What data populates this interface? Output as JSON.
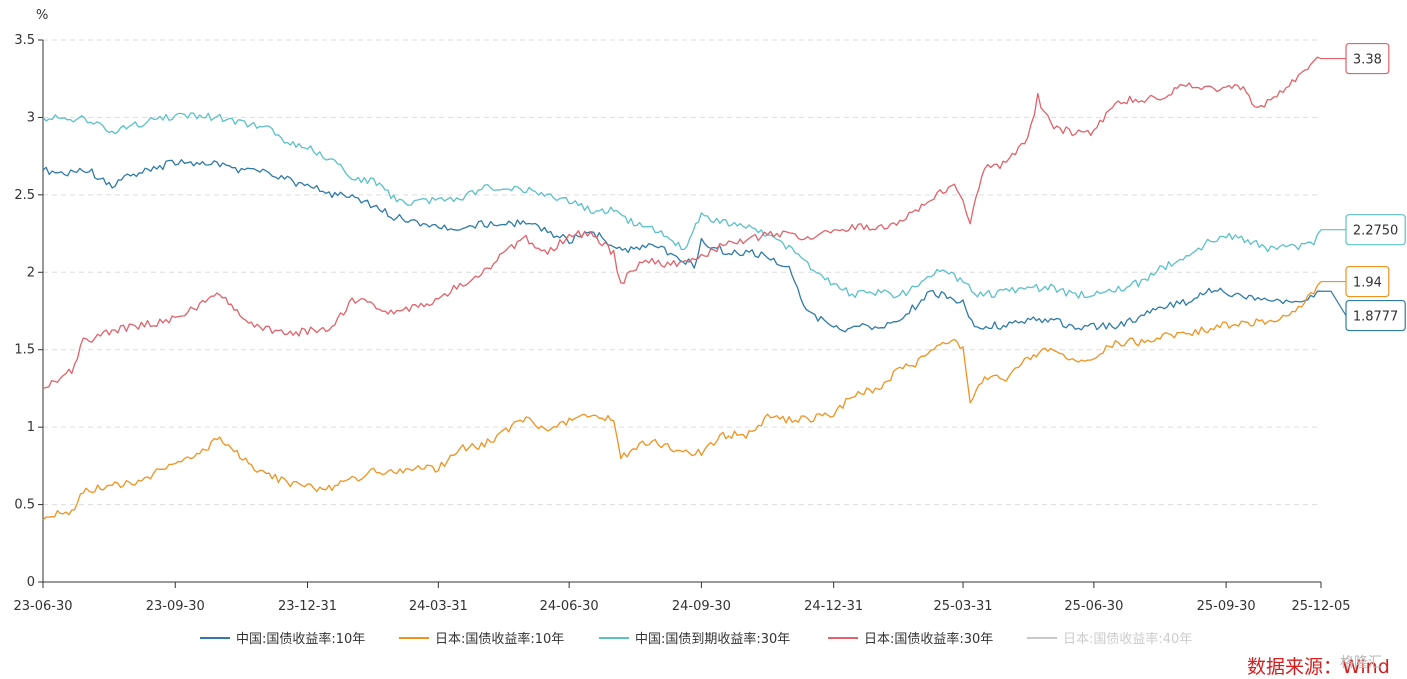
{
  "chart_data": {
    "type": "line",
    "ylabel": "%",
    "ylim": [
      0,
      3.5
    ],
    "y_ticks": [
      "0",
      "0.5",
      "1",
      "1.5",
      "2",
      "2.5",
      "3",
      "3.5"
    ],
    "x_range": [
      "23-06-30",
      "25-12-05"
    ],
    "x_ticks": [
      "23-06-30",
      "23-09-30",
      "23-12-31",
      "24-03-31",
      "24-06-30",
      "24-09-30",
      "24-12-31",
      "25-03-31",
      "25-06-30",
      "25-09-30",
      "25-12-05"
    ],
    "grid": "horizontal dashed",
    "legend_position": "bottom",
    "series": [
      {
        "name": "中国:国债收益率:10年",
        "color": "#2f7aa8",
        "end_label": "1.8777",
        "points": [
          [
            "23-06-30",
            2.66
          ],
          [
            "23-07-15",
            2.64
          ],
          [
            "23-08-01",
            2.66
          ],
          [
            "23-08-15",
            2.56
          ],
          [
            "23-09-01",
            2.63
          ],
          [
            "23-09-15",
            2.67
          ],
          [
            "23-09-30",
            2.71
          ],
          [
            "23-10-15",
            2.7
          ],
          [
            "23-10-31",
            2.7
          ],
          [
            "23-11-15",
            2.66
          ],
          [
            "23-11-30",
            2.66
          ],
          [
            "23-12-15",
            2.6
          ],
          [
            "23-12-31",
            2.56
          ],
          [
            "24-01-15",
            2.51
          ],
          [
            "24-01-31",
            2.48
          ],
          [
            "24-02-15",
            2.43
          ],
          [
            "24-02-29",
            2.36
          ],
          [
            "24-03-10",
            2.33
          ],
          [
            "24-03-31",
            2.3
          ],
          [
            "24-04-15",
            2.27
          ],
          [
            "24-04-30",
            2.31
          ],
          [
            "24-05-15",
            2.32
          ],
          [
            "24-05-31",
            2.31
          ],
          [
            "24-06-15",
            2.27
          ],
          [
            "24-06-30",
            2.2
          ],
          [
            "24-07-15",
            2.27
          ],
          [
            "24-07-31",
            2.17
          ],
          [
            "24-08-10",
            2.13
          ],
          [
            "24-08-20",
            2.18
          ],
          [
            "24-08-31",
            2.16
          ],
          [
            "24-09-15",
            2.08
          ],
          [
            "24-09-25",
            2.05
          ],
          [
            "24-09-30",
            2.2
          ],
          [
            "24-10-15",
            2.14
          ],
          [
            "24-10-31",
            2.13
          ],
          [
            "24-11-15",
            2.1
          ],
          [
            "24-11-30",
            2.02
          ],
          [
            "24-12-10",
            1.8
          ],
          [
            "24-12-20",
            1.7
          ],
          [
            "24-12-31",
            1.65
          ],
          [
            "25-01-10",
            1.62
          ],
          [
            "25-01-20",
            1.65
          ],
          [
            "25-01-31",
            1.64
          ],
          [
            "25-02-15",
            1.7
          ],
          [
            "25-02-28",
            1.8
          ],
          [
            "25-03-10",
            1.88
          ],
          [
            "25-03-20",
            1.83
          ],
          [
            "25-03-31",
            1.8
          ],
          [
            "25-04-08",
            1.65
          ],
          [
            "25-04-20",
            1.66
          ],
          [
            "25-04-30",
            1.65
          ],
          [
            "25-05-15",
            1.69
          ],
          [
            "25-05-31",
            1.7
          ],
          [
            "25-06-15",
            1.65
          ],
          [
            "25-06-30",
            1.65
          ],
          [
            "25-07-15",
            1.65
          ],
          [
            "25-07-31",
            1.7
          ],
          [
            "25-08-10",
            1.75
          ],
          [
            "25-08-20",
            1.78
          ],
          [
            "25-08-31",
            1.8
          ],
          [
            "25-09-10",
            1.85
          ],
          [
            "25-09-20",
            1.88
          ],
          [
            "25-09-30",
            1.87
          ],
          [
            "25-10-10",
            1.85
          ],
          [
            "25-10-20",
            1.83
          ],
          [
            "25-10-31",
            1.82
          ],
          [
            "25-11-15",
            1.82
          ],
          [
            "25-11-30",
            1.84
          ],
          [
            "25-12-05",
            1.8777
          ]
        ]
      },
      {
        "name": "日本:国债收益率:10年",
        "color": "#f0921f",
        "end_label": "1.94",
        "points": [
          [
            "23-06-30",
            0.4
          ],
          [
            "23-07-10",
            0.44
          ],
          [
            "23-07-20",
            0.46
          ],
          [
            "23-07-28",
            0.58
          ],
          [
            "23-08-15",
            0.62
          ],
          [
            "23-08-31",
            0.64
          ],
          [
            "23-09-15",
            0.7
          ],
          [
            "23-09-30",
            0.76
          ],
          [
            "23-10-15",
            0.82
          ],
          [
            "23-10-31",
            0.93
          ],
          [
            "23-11-10",
            0.85
          ],
          [
            "23-11-20",
            0.76
          ],
          [
            "23-11-30",
            0.7
          ],
          [
            "23-12-15",
            0.65
          ],
          [
            "23-12-31",
            0.61
          ],
          [
            "24-01-15",
            0.6
          ],
          [
            "24-01-31",
            0.66
          ],
          [
            "24-02-15",
            0.72
          ],
          [
            "24-02-29",
            0.7
          ],
          [
            "24-03-15",
            0.75
          ],
          [
            "24-03-31",
            0.73
          ],
          [
            "24-04-15",
            0.86
          ],
          [
            "24-04-30",
            0.88
          ],
          [
            "24-05-15",
            0.96
          ],
          [
            "24-05-31",
            1.06
          ],
          [
            "24-06-15",
            0.96
          ],
          [
            "24-06-30",
            1.05
          ],
          [
            "24-07-15",
            1.07
          ],
          [
            "24-07-31",
            1.05
          ],
          [
            "24-08-05",
            0.8
          ],
          [
            "24-08-20",
            0.89
          ],
          [
            "24-08-31",
            0.9
          ],
          [
            "24-09-15",
            0.83
          ],
          [
            "24-09-30",
            0.84
          ],
          [
            "24-10-15",
            0.95
          ],
          [
            "24-10-31",
            0.95
          ],
          [
            "24-11-15",
            1.06
          ],
          [
            "24-11-30",
            1.05
          ],
          [
            "24-12-15",
            1.05
          ],
          [
            "24-12-31",
            1.09
          ],
          [
            "25-01-15",
            1.22
          ],
          [
            "25-01-31",
            1.24
          ],
          [
            "25-02-15",
            1.38
          ],
          [
            "25-02-28",
            1.42
          ],
          [
            "25-03-15",
            1.52
          ],
          [
            "25-03-25",
            1.55
          ],
          [
            "25-03-31",
            1.5
          ],
          [
            "25-04-05",
            1.17
          ],
          [
            "25-04-15",
            1.33
          ],
          [
            "25-04-30",
            1.3
          ],
          [
            "25-05-15",
            1.45
          ],
          [
            "25-05-31",
            1.5
          ],
          [
            "25-06-15",
            1.42
          ],
          [
            "25-06-30",
            1.44
          ],
          [
            "25-07-15",
            1.55
          ],
          [
            "25-07-31",
            1.55
          ],
          [
            "25-08-15",
            1.58
          ],
          [
            "25-08-31",
            1.6
          ],
          [
            "25-09-15",
            1.63
          ],
          [
            "25-09-30",
            1.66
          ],
          [
            "25-10-15",
            1.67
          ],
          [
            "25-10-31",
            1.68
          ],
          [
            "25-11-15",
            1.75
          ],
          [
            "25-11-30",
            1.86
          ],
          [
            "25-12-05",
            1.94
          ]
        ]
      },
      {
        "name": "中国:国债到期收益率:30年",
        "color": "#5cc0c8",
        "end_label": "2.2750",
        "points": [
          [
            "23-06-30",
            3.0
          ],
          [
            "23-07-15",
            2.99
          ],
          [
            "23-07-31",
            2.99
          ],
          [
            "23-08-15",
            2.9
          ],
          [
            "23-08-31",
            2.94
          ],
          [
            "23-09-15",
            2.99
          ],
          [
            "23-09-30",
            3.0
          ],
          [
            "23-10-15",
            3.01
          ],
          [
            "23-10-31",
            3.0
          ],
          [
            "23-11-15",
            2.96
          ],
          [
            "23-11-30",
            2.95
          ],
          [
            "23-12-15",
            2.85
          ],
          [
            "23-12-31",
            2.81
          ],
          [
            "24-01-15",
            2.73
          ],
          [
            "24-01-31",
            2.62
          ],
          [
            "24-02-15",
            2.58
          ],
          [
            "24-02-29",
            2.48
          ],
          [
            "24-03-10",
            2.45
          ],
          [
            "24-03-31",
            2.46
          ],
          [
            "24-04-15",
            2.46
          ],
          [
            "24-04-30",
            2.55
          ],
          [
            "24-05-15",
            2.55
          ],
          [
            "24-05-31",
            2.53
          ],
          [
            "24-06-15",
            2.5
          ],
          [
            "24-06-30",
            2.46
          ],
          [
            "24-07-15",
            2.4
          ],
          [
            "24-07-31",
            2.4
          ],
          [
            "24-08-10",
            2.33
          ],
          [
            "24-08-20",
            2.3
          ],
          [
            "24-08-31",
            2.26
          ],
          [
            "24-09-10",
            2.18
          ],
          [
            "24-09-20",
            2.16
          ],
          [
            "24-09-30",
            2.38
          ],
          [
            "24-10-15",
            2.32
          ],
          [
            "24-10-31",
            2.3
          ],
          [
            "24-11-15",
            2.25
          ],
          [
            "24-11-30",
            2.15
          ],
          [
            "24-12-15",
            2.03
          ],
          [
            "24-12-31",
            1.92
          ],
          [
            "25-01-15",
            1.85
          ],
          [
            "25-01-31",
            1.88
          ],
          [
            "25-02-15",
            1.85
          ],
          [
            "25-02-28",
            1.92
          ],
          [
            "25-03-15",
            2.03
          ],
          [
            "25-03-31",
            1.93
          ],
          [
            "25-04-10",
            1.85
          ],
          [
            "25-04-30",
            1.87
          ],
          [
            "25-05-15",
            1.9
          ],
          [
            "25-05-31",
            1.9
          ],
          [
            "25-06-15",
            1.86
          ],
          [
            "25-06-30",
            1.85
          ],
          [
            "25-07-15",
            1.89
          ],
          [
            "25-07-31",
            1.93
          ],
          [
            "25-08-15",
            2.02
          ],
          [
            "25-08-31",
            2.1
          ],
          [
            "25-09-15",
            2.18
          ],
          [
            "25-09-30",
            2.24
          ],
          [
            "25-10-15",
            2.21
          ],
          [
            "25-10-31",
            2.15
          ],
          [
            "25-11-15",
            2.16
          ],
          [
            "25-11-30",
            2.19
          ],
          [
            "25-12-05",
            2.275
          ]
        ]
      },
      {
        "name": "日本:国债收益率:30年",
        "color": "#e0626a",
        "end_label": "3.38",
        "points": [
          [
            "23-06-30",
            1.25
          ],
          [
            "23-07-10",
            1.3
          ],
          [
            "23-07-20",
            1.37
          ],
          [
            "23-07-28",
            1.55
          ],
          [
            "23-08-15",
            1.62
          ],
          [
            "23-08-31",
            1.65
          ],
          [
            "23-09-15",
            1.67
          ],
          [
            "23-09-30",
            1.7
          ],
          [
            "23-10-15",
            1.78
          ],
          [
            "23-10-31",
            1.86
          ],
          [
            "23-11-10",
            1.77
          ],
          [
            "23-11-20",
            1.66
          ],
          [
            "23-11-30",
            1.65
          ],
          [
            "23-12-15",
            1.6
          ],
          [
            "23-12-31",
            1.62
          ],
          [
            "24-01-15",
            1.63
          ],
          [
            "24-01-31",
            1.82
          ],
          [
            "24-02-15",
            1.79
          ],
          [
            "24-02-29",
            1.74
          ],
          [
            "24-03-15",
            1.78
          ],
          [
            "24-03-31",
            1.82
          ],
          [
            "24-04-15",
            1.92
          ],
          [
            "24-04-30",
            1.98
          ],
          [
            "24-05-15",
            2.12
          ],
          [
            "24-05-31",
            2.22
          ],
          [
            "24-06-15",
            2.13
          ],
          [
            "24-06-30",
            2.24
          ],
          [
            "24-07-15",
            2.25
          ],
          [
            "24-07-31",
            2.12
          ],
          [
            "24-08-05",
            1.93
          ],
          [
            "24-08-20",
            2.08
          ],
          [
            "24-08-31",
            2.06
          ],
          [
            "24-09-15",
            2.05
          ],
          [
            "24-09-30",
            2.1
          ],
          [
            "24-10-15",
            2.18
          ],
          [
            "24-10-31",
            2.2
          ],
          [
            "24-11-15",
            2.25
          ],
          [
            "24-11-30",
            2.25
          ],
          [
            "24-12-15",
            2.22
          ],
          [
            "24-12-31",
            2.26
          ],
          [
            "25-01-15",
            2.3
          ],
          [
            "25-01-31",
            2.28
          ],
          [
            "25-02-15",
            2.33
          ],
          [
            "25-02-28",
            2.4
          ],
          [
            "25-03-15",
            2.52
          ],
          [
            "25-03-25",
            2.55
          ],
          [
            "25-03-31",
            2.48
          ],
          [
            "25-04-05",
            2.32
          ],
          [
            "25-04-15",
            2.68
          ],
          [
            "25-04-30",
            2.7
          ],
          [
            "25-05-15",
            2.85
          ],
          [
            "25-05-22",
            3.13
          ],
          [
            "25-05-31",
            2.95
          ],
          [
            "25-06-15",
            2.9
          ],
          [
            "25-06-30",
            2.9
          ],
          [
            "25-07-15",
            3.1
          ],
          [
            "25-07-31",
            3.12
          ],
          [
            "25-08-15",
            3.12
          ],
          [
            "25-08-31",
            3.22
          ],
          [
            "25-09-15",
            3.2
          ],
          [
            "25-09-30",
            3.18
          ],
          [
            "25-10-10",
            3.2
          ],
          [
            "25-10-20",
            3.08
          ],
          [
            "25-10-31",
            3.1
          ],
          [
            "25-11-15",
            3.22
          ],
          [
            "25-11-30",
            3.35
          ],
          [
            "25-12-05",
            3.38
          ]
        ]
      },
      {
        "name": "日本:国债收益率:40年",
        "color": "#c8c8c8",
        "hidden": true,
        "points": []
      }
    ]
  },
  "source_note": "数据来源：Wind",
  "watermark": "格隆汇"
}
